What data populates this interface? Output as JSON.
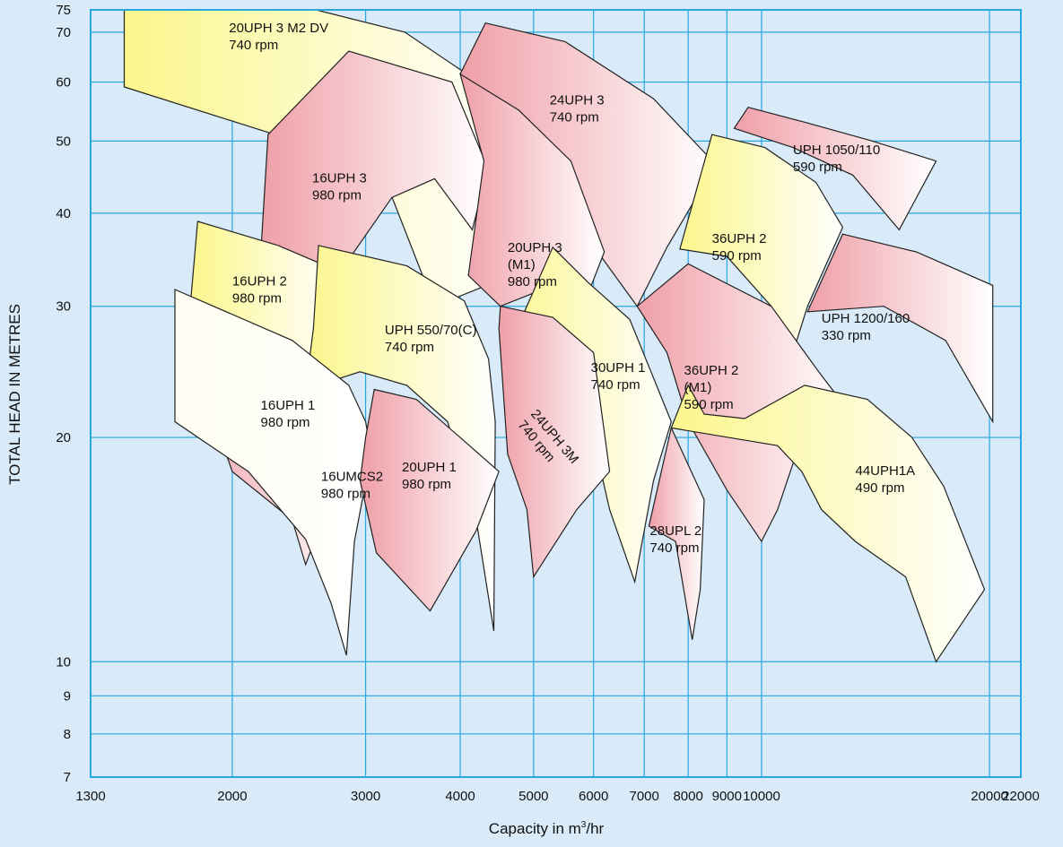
{
  "chart_data": {
    "type": "area",
    "title": "",
    "xlabel": "Capacity in m",
    "xlabel_sup": "3",
    "xlabel_suffix": "/hr",
    "ylabel": "TOTAL HEAD IN METRES",
    "x_scale": "log",
    "y_scale": "log",
    "xlim": [
      1300,
      22000
    ],
    "ylim": [
      7,
      75
    ],
    "grid": true,
    "x_ticks": [
      1300,
      2000,
      3000,
      4000,
      5000,
      6000,
      7000,
      8000,
      9000,
      10000,
      20000,
      22000
    ],
    "x_tick_labels": [
      "1300",
      "2000",
      "3000",
      "4000",
      "5000",
      "6000",
      "7000",
      "8000",
      "9000",
      "10000",
      "20000",
      "22000"
    ],
    "y_ticks": [
      7,
      8,
      9,
      10,
      20,
      30,
      40,
      50,
      60,
      70,
      75
    ],
    "y_tick_labels": [
      "7",
      "8",
      "9",
      "10",
      "20",
      "30",
      "40",
      "50",
      "60",
      "70",
      "75"
    ],
    "colors": {
      "yellow": "#fbf68c",
      "pink": "#ef9fa8",
      "white": "#fffdf0",
      "grid": "#2aa6e0",
      "background": "#d9ebf8"
    },
    "series": [
      {
        "name": "20UPH 3 M2 DV",
        "speed": "740 rpm",
        "color": "yellow",
        "boundary": [
          [
            1440,
            75
          ],
          [
            2580,
            75
          ],
          [
            3380,
            70
          ],
          [
            4080,
            61.5
          ],
          [
            4620,
            52
          ],
          [
            4780,
            46.3
          ],
          [
            4400,
            32.2
          ],
          [
            3700,
            30
          ],
          [
            3140,
            46
          ],
          [
            1440,
            59.1
          ]
        ],
        "label_at": [
          1980,
          70
        ]
      },
      {
        "name": "24UPH 3",
        "speed": "740 rpm",
        "color": "pink",
        "boundary": [
          [
            4320,
            72
          ],
          [
            5500,
            68
          ],
          [
            7200,
            57
          ],
          [
            8700,
            46.5
          ],
          [
            7500,
            36
          ],
          [
            6850,
            30
          ],
          [
            6100,
            35.3
          ],
          [
            4000,
            61.5
          ]
        ],
        "label_at": [
          5250,
          56
        ]
      },
      {
        "name": "UPH 1050/110",
        "speed": "590 rpm",
        "color": "pink",
        "boundary": [
          [
            9600,
            55.5
          ],
          [
            11400,
            53
          ],
          [
            14000,
            50
          ],
          [
            17000,
            47
          ],
          [
            15200,
            38
          ],
          [
            13200,
            45
          ],
          [
            11000,
            49
          ],
          [
            9200,
            52
          ]
        ],
        "label_at": [
          11000,
          48
        ]
      },
      {
        "name": "16UPH 3",
        "speed": "980 rpm",
        "color": "pink",
        "boundary": [
          [
            2230,
            51
          ],
          [
            2850,
            66
          ],
          [
            3900,
            60
          ],
          [
            4350,
            46
          ],
          [
            4150,
            38
          ],
          [
            3700,
            44.5
          ],
          [
            3250,
            42
          ],
          [
            2880,
            35.2
          ],
          [
            2680,
            28
          ],
          [
            2480,
            29.6
          ],
          [
            2180,
            35
          ]
        ],
        "label_at": [
          2550,
          44
        ]
      },
      {
        "name": "20UPH 3",
        "name2": "(M1)",
        "speed": "980 rpm",
        "color": "pink",
        "boundary": [
          [
            4000,
            61.5
          ],
          [
            4780,
            55
          ],
          [
            5600,
            47
          ],
          [
            6200,
            35.5
          ],
          [
            5800,
            29.8
          ],
          [
            5300,
            32
          ],
          [
            4520,
            30
          ],
          [
            4100,
            33
          ],
          [
            4300,
            47
          ]
        ],
        "label_at": [
          4620,
          35.5
        ]
      },
      {
        "name": "36UPH 2",
        "speed": "590 rpm",
        "color": "yellow",
        "boundary": [
          [
            8600,
            51
          ],
          [
            10100,
            49
          ],
          [
            11800,
            44
          ],
          [
            12800,
            38.3
          ],
          [
            11500,
            30
          ],
          [
            11000,
            26
          ],
          [
            10300,
            30
          ],
          [
            9000,
            35
          ],
          [
            7800,
            35.8
          ]
        ],
        "label_at": [
          8600,
          36.5
        ]
      },
      {
        "name": "UPH 1200/160",
        "speed": "330 rpm",
        "color": "pink",
        "boundary": [
          [
            12800,
            37.5
          ],
          [
            16000,
            35.5
          ],
          [
            20200,
            32
          ],
          [
            20200,
            21
          ],
          [
            17500,
            27
          ],
          [
            14500,
            30
          ],
          [
            11500,
            29.5
          ]
        ],
        "label_at": [
          12000,
          28.5
        ]
      },
      {
        "name": "16UPH 2",
        "speed": "980 rpm",
        "color": "yellow",
        "boundary": [
          [
            1800,
            39
          ],
          [
            2300,
            36.2
          ],
          [
            2750,
            33.5
          ],
          [
            2560,
            25.5
          ],
          [
            2300,
            23.5
          ],
          [
            1760,
            30
          ]
        ],
        "label_at": [
          2000,
          32
        ]
      },
      {
        "name": "UPH 550/70(C)",
        "speed": "740 rpm",
        "color": "yellow",
        "boundary": [
          [
            2600,
            36.2
          ],
          [
            3400,
            34
          ],
          [
            4050,
            30.5
          ],
          [
            4360,
            25.5
          ],
          [
            4450,
            21
          ],
          [
            4430,
            11
          ],
          [
            4200,
            15.5
          ],
          [
            3850,
            21
          ],
          [
            3400,
            23.5
          ],
          [
            2950,
            24.5
          ],
          [
            2500,
            23.2
          ],
          [
            2560,
            28
          ]
        ],
        "label_at": [
          3180,
          27.5
        ]
      },
      {
        "name": "30UPH 1",
        "speed": "740 rpm",
        "color": "yellow",
        "boundary": [
          [
            5300,
            36
          ],
          [
            5900,
            32.3
          ],
          [
            6700,
            28.8
          ],
          [
            7600,
            21
          ],
          [
            7200,
            17.5
          ],
          [
            6800,
            12.8
          ],
          [
            6300,
            16
          ],
          [
            5700,
            25
          ],
          [
            4520,
            30
          ],
          [
            4680,
            27
          ]
        ],
        "label_at": [
          5950,
          24.5
        ]
      },
      {
        "name": "24UPH 3M",
        "speed": "740 rpm",
        "color": "pink",
        "boundary": [
          [
            4520,
            30
          ],
          [
            5300,
            29
          ],
          [
            6000,
            26
          ],
          [
            6300,
            18
          ],
          [
            5700,
            16
          ],
          [
            5000,
            13
          ],
          [
            4900,
            16
          ],
          [
            4620,
            19
          ],
          [
            4500,
            28
          ]
        ],
        "label_at": [
          4950,
          21.5
        ],
        "rotation": 50
      },
      {
        "name": "36UPH 2",
        "name2": "(M1)",
        "speed": "590 rpm",
        "color": "pink",
        "boundary": [
          [
            6850,
            30
          ],
          [
            8000,
            34.2
          ],
          [
            10300,
            30
          ],
          [
            11900,
            24.5
          ],
          [
            12900,
            22
          ],
          [
            12100,
            19
          ],
          [
            11300,
            20
          ],
          [
            10500,
            16
          ],
          [
            10000,
            14.5
          ],
          [
            9000,
            17
          ],
          [
            8000,
            21
          ],
          [
            7500,
            26
          ]
        ],
        "label_at": [
          7900,
          24.3
        ]
      },
      {
        "name": "16UPH 1",
        "speed": "980 rpm",
        "color": "pink",
        "boundary": [
          [
            1700,
            29
          ],
          [
            2230,
            26
          ],
          [
            2650,
            21.5
          ],
          [
            2900,
            21
          ],
          [
            2750,
            17.5
          ],
          [
            2500,
            13.5
          ],
          [
            2400,
            15.5
          ],
          [
            2000,
            18
          ]
        ],
        "label_at": [
          2180,
          21.8
        ]
      },
      {
        "name": "16UMCS2",
        "speed": "980 rpm",
        "color": "white",
        "boundary": [
          [
            1680,
            31.6
          ],
          [
            2400,
            27
          ],
          [
            2850,
            23.5
          ],
          [
            3000,
            21
          ],
          [
            3050,
            19
          ],
          [
            2900,
            14.5
          ],
          [
            2830,
            10.2
          ],
          [
            2700,
            12
          ],
          [
            2500,
            14.6
          ],
          [
            2100,
            18
          ],
          [
            1680,
            21
          ]
        ],
        "label_at": [
          2620,
          17.5
        ]
      },
      {
        "name": "20UPH 1",
        "speed": "980 rpm",
        "color": "pink",
        "boundary": [
          [
            3080,
            23.2
          ],
          [
            3500,
            22.5
          ],
          [
            4000,
            20
          ],
          [
            4500,
            18
          ],
          [
            4200,
            15
          ],
          [
            3650,
            11.7
          ],
          [
            3100,
            14
          ],
          [
            2950,
            17.5
          ],
          [
            3000,
            20
          ]
        ],
        "label_at": [
          3350,
          18
        ]
      },
      {
        "name": "28UPL 2",
        "speed": "740 rpm",
        "color": "pink",
        "boundary": [
          [
            7600,
            20.6
          ],
          [
            8400,
            16.5
          ],
          [
            8300,
            12.5
          ],
          [
            8100,
            10.7
          ],
          [
            7700,
            14.5
          ],
          [
            7100,
            15.2
          ]
        ],
        "label_at": [
          7120,
          14.8
        ]
      },
      {
        "name": "44UPH1A",
        "speed": "490 rpm",
        "color": "yellow",
        "boundary": [
          [
            8400,
            21.5
          ],
          [
            9500,
            21.2
          ],
          [
            11400,
            23.5
          ],
          [
            13800,
            22.5
          ],
          [
            15800,
            20
          ],
          [
            17400,
            17.2
          ],
          [
            19700,
            12.5
          ],
          [
            17000,
            10
          ],
          [
            15500,
            13
          ],
          [
            13300,
            14.5
          ],
          [
            12000,
            16
          ],
          [
            11300,
            18
          ],
          [
            10500,
            19.5
          ],
          [
            7600,
            20.6
          ],
          [
            8000,
            23.5
          ]
        ],
        "label_at": [
          13300,
          17.8
        ]
      }
    ]
  }
}
